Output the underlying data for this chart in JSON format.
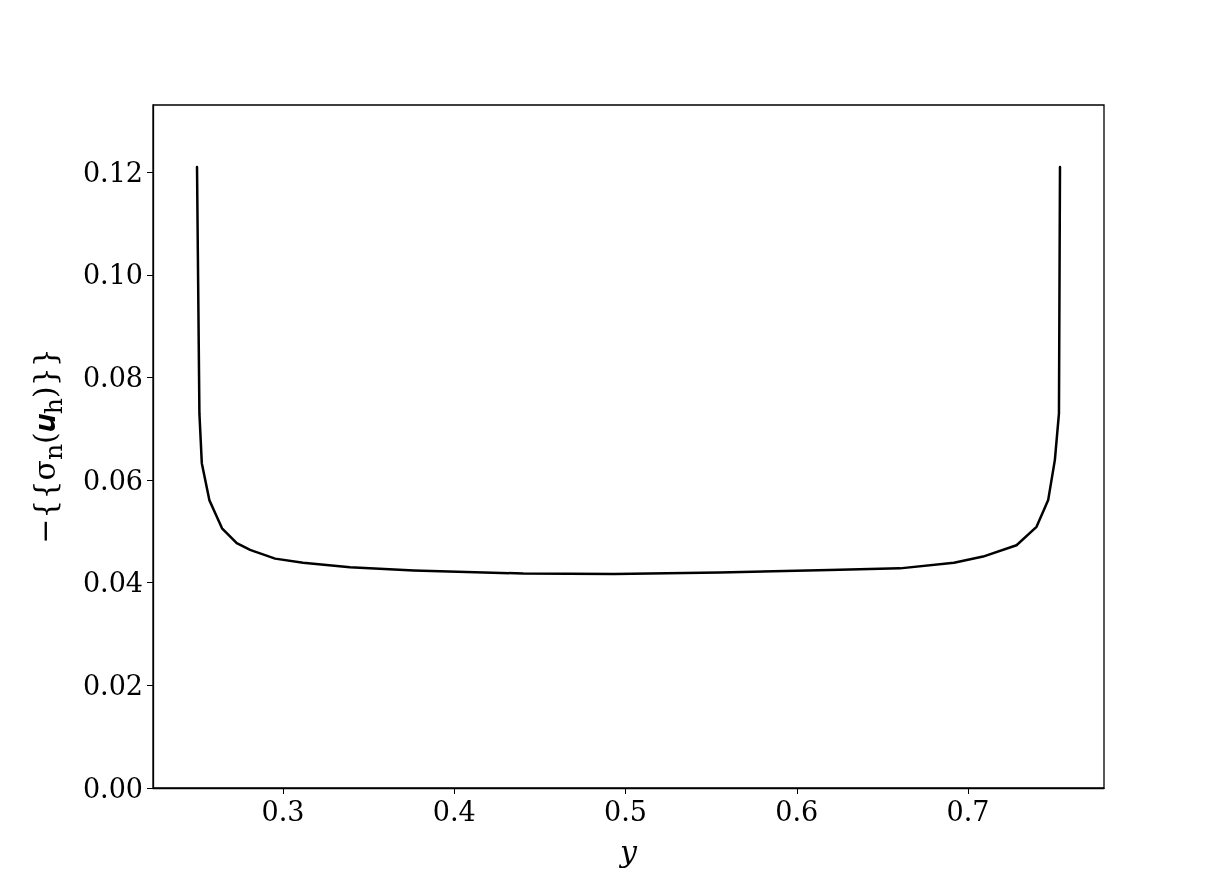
{
  "chart_data": {
    "type": "line",
    "xlabel": "y",
    "ylabel": "−{{σ$_{n}$(𝒖$_{h}$)}}",
    "series": [
      {
        "color": "#000000",
        "x": [
          0.2498,
          0.2512,
          0.2526,
          0.257,
          0.2644,
          0.273,
          0.2808,
          0.2954,
          0.3117,
          0.3391,
          0.3764,
          0.4403,
          0.4934,
          0.5549,
          0.6191,
          0.6602,
          0.6918,
          0.7088,
          0.7283,
          0.74,
          0.7468,
          0.7507,
          0.7531,
          0.7537
        ],
        "values": [
          0.121,
          0.073,
          0.0633,
          0.0561,
          0.0506,
          0.0477,
          0.0464,
          0.0447,
          0.0439,
          0.043,
          0.0424,
          0.0418,
          0.0417,
          0.042,
          0.0425,
          0.0428,
          0.0439,
          0.0451,
          0.0473,
          0.0509,
          0.0561,
          0.0639,
          0.073,
          0.121
        ]
      }
    ],
    "xlim": [
      0.2241,
      0.7794
    ],
    "xticks": [
      0.3,
      0.4,
      0.5,
      0.6,
      0.7
    ],
    "ylim": [
      0,
      0.1331
    ],
    "yticks": [
      {
        "value": 0,
        "label": "0.00"
      },
      {
        "value": 0.02,
        "label": "0.02"
      },
      {
        "value": 0.04,
        "label": "0.04"
      },
      {
        "value": 0.06,
        "label": "0.06"
      },
      {
        "value": 0.08,
        "label": "0.08"
      },
      {
        "value": 0.1,
        "label": "0.10"
      },
      {
        "value": 0.12,
        "label": "0.12"
      }
    ],
    "grid": false,
    "marker": "none",
    "line_style": "solid"
  }
}
